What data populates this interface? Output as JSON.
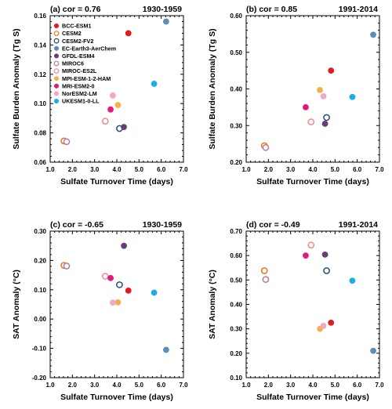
{
  "models": [
    {
      "name": "BCC-ESM1",
      "color": "#e31a1c",
      "filled": true
    },
    {
      "name": "CESM2",
      "color": "#e8761a",
      "filled": false
    },
    {
      "name": "CESM2-FV2",
      "color": "#1f4e79",
      "filled": false
    },
    {
      "name": "EC-Earth3-AerChem",
      "color": "#5b8db8",
      "filled": true
    },
    {
      "name": "GFDL-ESM4",
      "color": "#6a3d7a",
      "filled": true
    },
    {
      "name": "MIROC6",
      "color": "#b07aa1",
      "filled": false
    },
    {
      "name": "MIROC-ES2L",
      "color": "#f08a8a",
      "filled": false
    },
    {
      "name": "MPI-ESM-1-2-HAM",
      "color": "#f6b04a",
      "filled": true
    },
    {
      "name": "MRI-ESM2-0",
      "color": "#e5177e",
      "filled": true
    },
    {
      "name": "NorESM2-LM",
      "color": "#f4a6c8",
      "filled": true
    },
    {
      "name": "UKESM1-0-LL",
      "color": "#1aaee6",
      "filled": true
    }
  ],
  "chart_data": [
    {
      "type": "scatter",
      "title": "(a) cor =  0.76",
      "period": "1930-1959",
      "xlabel": "Sulfate Turnover Time (days)",
      "ylabel": "Sulfate Burden Anomaly (Tg S)",
      "xlim": [
        1.0,
        7.0
      ],
      "ylim": [
        0.06,
        0.16
      ],
      "xticks": [
        1.0,
        2.0,
        3.0,
        4.0,
        5.0,
        6.0,
        7.0
      ],
      "yticks": [
        0.06,
        0.08,
        0.1,
        0.12,
        0.14,
        0.16
      ],
      "xtick_labels": [
        "1.0",
        "2.0",
        "3.0",
        "4.0",
        "5.0",
        "6.0",
        "7.0"
      ],
      "ytick_labels": [
        "0.06",
        "0.08",
        "0.10",
        "0.12",
        "0.14",
        "0.16"
      ],
      "legend": "top-left",
      "points": [
        {
          "model": "BCC-ESM1",
          "x": 4.52,
          "y": 0.148
        },
        {
          "model": "CESM2",
          "x": 1.62,
          "y": 0.0745
        },
        {
          "model": "CESM2-FV2",
          "x": 4.12,
          "y": 0.083
        },
        {
          "model": "EC-Earth3-AerChem",
          "x": 6.22,
          "y": 0.156
        },
        {
          "model": "GFDL-ESM4",
          "x": 4.32,
          "y": 0.084
        },
        {
          "model": "MIROC6",
          "x": 1.74,
          "y": 0.074
        },
        {
          "model": "MIROC-ES2L",
          "x": 3.48,
          "y": 0.088
        },
        {
          "model": "MPI-ESM-1-2-HAM",
          "x": 4.05,
          "y": 0.099
        },
        {
          "model": "MRI-ESM2-0",
          "x": 3.72,
          "y": 0.096
        },
        {
          "model": "NorESM2-LM",
          "x": 3.82,
          "y": 0.1055
        },
        {
          "model": "UKESM1-0-LL",
          "x": 5.68,
          "y": 0.1135
        }
      ]
    },
    {
      "type": "scatter",
      "title": "(b) cor =  0.85",
      "period": "1991-2014",
      "xlabel": "Sulfate Turnover Time (days)",
      "ylabel": "Sulfate Burden Anomaly (Tg S)",
      "xlim": [
        1.0,
        7.0
      ],
      "ylim": [
        0.2,
        0.6
      ],
      "xticks": [
        1.0,
        2.0,
        3.0,
        4.0,
        5.0,
        6.0,
        7.0
      ],
      "yticks": [
        0.2,
        0.3,
        0.4,
        0.5,
        0.6
      ],
      "xtick_labels": [
        "1.0",
        "2.0",
        "3.0",
        "4.0",
        "5.0",
        "6.0",
        "7.0"
      ],
      "ytick_labels": [
        "0.20",
        "0.30",
        "0.40",
        "0.50",
        "0.60"
      ],
      "points": [
        {
          "model": "BCC-ESM1",
          "x": 4.82,
          "y": 0.45
        },
        {
          "model": "CESM2",
          "x": 1.82,
          "y": 0.245
        },
        {
          "model": "CESM2-FV2",
          "x": 4.62,
          "y": 0.322
        },
        {
          "model": "EC-Earth3-AerChem",
          "x": 6.72,
          "y": 0.548
        },
        {
          "model": "GFDL-ESM4",
          "x": 4.55,
          "y": 0.305
        },
        {
          "model": "MIROC6",
          "x": 1.88,
          "y": 0.24
        },
        {
          "model": "MIROC-ES2L",
          "x": 3.92,
          "y": 0.31
        },
        {
          "model": "MPI-ESM-1-2-HAM",
          "x": 4.32,
          "y": 0.397
        },
        {
          "model": "MRI-ESM2-0",
          "x": 3.68,
          "y": 0.35
        },
        {
          "model": "NorESM2-LM",
          "x": 4.48,
          "y": 0.38
        },
        {
          "model": "UKESM1-0-LL",
          "x": 5.78,
          "y": 0.378
        }
      ]
    },
    {
      "type": "scatter",
      "title": "(c) cor = -0.65",
      "period": "1930-1959",
      "xlabel": "Sulfate Turnover Time (days)",
      "ylabel": "SAT Anomaly (°C)",
      "xlim": [
        1.0,
        7.0
      ],
      "ylim": [
        -0.2,
        0.3
      ],
      "xticks": [
        1.0,
        2.0,
        3.0,
        4.0,
        5.0,
        6.0,
        7.0
      ],
      "yticks": [
        -0.2,
        -0.1,
        0.0,
        0.1,
        0.2,
        0.3
      ],
      "xtick_labels": [
        "1.0",
        "2.0",
        "3.0",
        "4.0",
        "5.0",
        "6.0",
        "7.0"
      ],
      "ytick_labels": [
        "-0.20",
        "-0.10",
        "0.00",
        "0.10",
        "0.20",
        "0.30"
      ],
      "points": [
        {
          "model": "BCC-ESM1",
          "x": 4.52,
          "y": 0.097
        },
        {
          "model": "CESM2",
          "x": 1.62,
          "y": 0.183
        },
        {
          "model": "CESM2-FV2",
          "x": 4.12,
          "y": 0.117
        },
        {
          "model": "EC-Earth3-AerChem",
          "x": 6.22,
          "y": -0.105
        },
        {
          "model": "GFDL-ESM4",
          "x": 4.32,
          "y": 0.25
        },
        {
          "model": "MIROC6",
          "x": 1.74,
          "y": 0.181
        },
        {
          "model": "MIROC-ES2L",
          "x": 3.48,
          "y": 0.146
        },
        {
          "model": "MPI-ESM-1-2-HAM",
          "x": 4.05,
          "y": 0.057
        },
        {
          "model": "MRI-ESM2-0",
          "x": 3.72,
          "y": 0.14
        },
        {
          "model": "NorESM2-LM",
          "x": 3.82,
          "y": 0.056
        },
        {
          "model": "UKESM1-0-LL",
          "x": 5.68,
          "y": 0.09
        }
      ]
    },
    {
      "type": "scatter",
      "title": "(d) cor = -0.49",
      "period": "1991-2014",
      "xlabel": "Sulfate Turnover Time (days)",
      "ylabel": "SAT Anomaly (°C)",
      "xlim": [
        1.0,
        7.0
      ],
      "ylim": [
        0.1,
        0.7
      ],
      "xticks": [
        1.0,
        2.0,
        3.0,
        4.0,
        5.0,
        6.0,
        7.0
      ],
      "yticks": [
        0.1,
        0.2,
        0.3,
        0.4,
        0.5,
        0.6,
        0.7
      ],
      "xtick_labels": [
        "1.0",
        "2.0",
        "3.0",
        "4.0",
        "5.0",
        "6.0",
        "7.0"
      ],
      "ytick_labels": [
        "0.10",
        "0.20",
        "0.30",
        "0.40",
        "0.50",
        "0.60",
        "0.70"
      ],
      "points": [
        {
          "model": "BCC-ESM1",
          "x": 4.82,
          "y": 0.325
        },
        {
          "model": "CESM2",
          "x": 1.82,
          "y": 0.538
        },
        {
          "model": "CESM2-FV2",
          "x": 4.62,
          "y": 0.538
        },
        {
          "model": "EC-Earth3-AerChem",
          "x": 6.72,
          "y": 0.21
        },
        {
          "model": "GFDL-ESM4",
          "x": 4.55,
          "y": 0.604
        },
        {
          "model": "MIROC6",
          "x": 1.88,
          "y": 0.502
        },
        {
          "model": "MIROC-ES2L",
          "x": 3.92,
          "y": 0.643
        },
        {
          "model": "MPI-ESM-1-2-HAM",
          "x": 4.32,
          "y": 0.3
        },
        {
          "model": "MRI-ESM2-0",
          "x": 3.68,
          "y": 0.6
        },
        {
          "model": "NorESM2-LM",
          "x": 4.48,
          "y": 0.312
        },
        {
          "model": "UKESM1-0-LL",
          "x": 5.78,
          "y": 0.497
        }
      ]
    }
  ]
}
